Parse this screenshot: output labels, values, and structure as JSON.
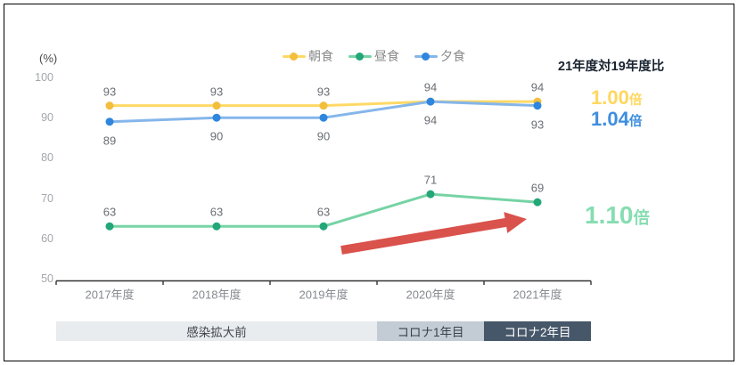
{
  "chart_data": {
    "type": "line",
    "unit_label": "(%)",
    "categories": [
      "2017年度",
      "2018年度",
      "2019年度",
      "2020年度",
      "2021年度"
    ],
    "series": [
      {
        "key": "breakfast",
        "name": "朝食",
        "values": [
          93,
          93,
          93,
          94,
          94
        ],
        "line_color": "#FFD966",
        "dot_color": "#F2BE3C",
        "label_position": "above"
      },
      {
        "key": "lunch",
        "name": "昼食",
        "values": [
          63,
          63,
          63,
          71,
          69
        ],
        "line_color": "#76D3A5",
        "dot_color": "#23A678",
        "label_position": "above"
      },
      {
        "key": "dinner",
        "name": "夕食",
        "values": [
          89,
          90,
          90,
          94,
          93
        ],
        "line_color": "#85B6EA",
        "dot_color": "#2E86DE",
        "label_position": "below"
      }
    ],
    "ylim": [
      50,
      100
    ],
    "yticks": [
      100,
      90,
      80,
      70,
      60,
      50
    ],
    "grid": false,
    "legend_position": "top",
    "axis_color": "#333333",
    "annotation_arrow": {
      "color": "#D9524C",
      "meaning": "increase of lunch rate from 2019 to 2021"
    }
  },
  "ratio_panel": {
    "title": "21年度対19年度比",
    "items": [
      {
        "key": "breakfast-ratio",
        "value": "1.00",
        "suffix": "倍",
        "color": "#FFD75E"
      },
      {
        "key": "dinner-ratio",
        "value": "1.04",
        "suffix": "倍",
        "color": "#3E8EDE"
      },
      {
        "key": "lunch-ratio",
        "value": "1.10",
        "suffix": "倍",
        "color": "#86DDB1"
      }
    ]
  },
  "timeline": {
    "bands": [
      {
        "key": "pre-pandemic",
        "label": "感染拡大前",
        "bg": "#E8ECEF",
        "fg": "#3F454D",
        "span": [
          0,
          3
        ]
      },
      {
        "key": "covid-year1",
        "label": "コロナ1年目",
        "bg": "#C3CCD4",
        "fg": "#3A414B",
        "span": [
          3,
          4
        ]
      },
      {
        "key": "covid-year2",
        "label": "コロナ2年目",
        "bg": "#47576A",
        "fg": "#FFFFFF",
        "span": [
          4,
          5
        ]
      }
    ]
  }
}
